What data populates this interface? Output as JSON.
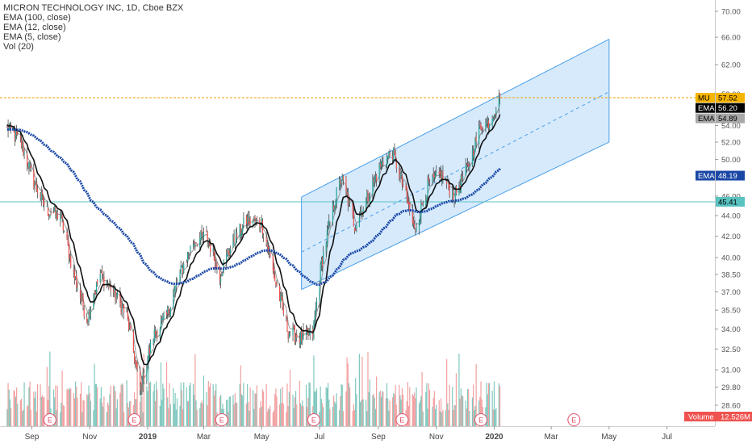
{
  "header": {
    "title": "MICRON TECHNOLOGY INC, 1D, Cboe BZX",
    "studies": [
      "EMA (100, close)",
      "EMA (12, close)",
      "EMA (5, close)",
      "Vol (20)"
    ]
  },
  "colors": {
    "up": "#26a69a",
    "down": "#ef5350",
    "up_vol": "#7fc8be",
    "down_vol": "#f2a0a0",
    "ema100": "#1a47a6",
    "ema12": "#111111",
    "ema5": "#999999",
    "channel_fill": "#cfe6fb",
    "channel_line": "#4a9ee8",
    "hline_price": "#f0a30a",
    "hline_support": "#59c3c0",
    "earnings": "#e0506a"
  },
  "price_tags": [
    {
      "label": "MU",
      "value": "57.52",
      "bg": "#f5b400",
      "fg": "#000000"
    },
    {
      "label": "EMA",
      "value": "56.20",
      "bg": "#000000",
      "fg": "#ffffff"
    },
    {
      "label": "EMA",
      "value": "54.89",
      "bg": "#a8a8a8",
      "fg": "#000000"
    },
    {
      "label": "EMA",
      "value": "48.19",
      "bg": "#1a47a6",
      "fg": "#ffffff"
    },
    {
      "label": "",
      "value": "45.41",
      "bg": "#59c3c0",
      "fg": "#000000"
    }
  ],
  "volume_tag": {
    "label": "Volume",
    "value": "12.526M"
  },
  "earnings_marker": "E",
  "chart_data": {
    "type": "candlestick",
    "title": "MICRON TECHNOLOGY INC, 1D, Cboe BZX",
    "y_scale": "log",
    "y_ticks": [
      "70.00",
      "66.00",
      "62.00",
      "58.00",
      "54.00",
      "52.00",
      "50.00",
      "48.00",
      "46.00",
      "44.00",
      "42.00",
      "40.00",
      "38.50",
      "37.00",
      "35.50",
      "34.00",
      "32.50",
      "31.00",
      "29.80",
      "28.60"
    ],
    "x_ticks": [
      {
        "label": "Sep",
        "bold": false
      },
      {
        "label": "Nov",
        "bold": false
      },
      {
        "label": "2019",
        "bold": true
      },
      {
        "label": "Mar",
        "bold": false
      },
      {
        "label": "May",
        "bold": false
      },
      {
        "label": "Jul",
        "bold": false
      },
      {
        "label": "Sep",
        "bold": false
      },
      {
        "label": "Nov",
        "bold": false
      },
      {
        "label": "2020",
        "bold": true
      },
      {
        "label": "Mar",
        "bold": false
      },
      {
        "label": "May",
        "bold": false
      },
      {
        "label": "Jul",
        "bold": false
      }
    ],
    "price_anchors": [
      {
        "date": "2018-08-06",
        "close": 53.8
      },
      {
        "date": "2018-08-20",
        "close": 52.0
      },
      {
        "date": "2018-09-03",
        "close": 47.5
      },
      {
        "date": "2018-09-17",
        "close": 44.5
      },
      {
        "date": "2018-10-01",
        "close": 44.0
      },
      {
        "date": "2018-10-15",
        "close": 38.5
      },
      {
        "date": "2018-10-29",
        "close": 34.8
      },
      {
        "date": "2018-11-12",
        "close": 38.5
      },
      {
        "date": "2018-11-26",
        "close": 37.0
      },
      {
        "date": "2018-12-10",
        "close": 35.0
      },
      {
        "date": "2018-12-24",
        "close": 29.5
      },
      {
        "date": "2019-01-07",
        "close": 33.5
      },
      {
        "date": "2019-01-21",
        "close": 35.0
      },
      {
        "date": "2019-02-04",
        "close": 38.5
      },
      {
        "date": "2019-02-18",
        "close": 41.5
      },
      {
        "date": "2019-03-04",
        "close": 42.0
      },
      {
        "date": "2019-03-18",
        "close": 38.5
      },
      {
        "date": "2019-04-01",
        "close": 41.5
      },
      {
        "date": "2019-04-15",
        "close": 43.5
      },
      {
        "date": "2019-05-01",
        "close": 43.3
      },
      {
        "date": "2019-05-15",
        "close": 38.0
      },
      {
        "date": "2019-05-29",
        "close": 33.8
      },
      {
        "date": "2019-06-12",
        "close": 33.3
      },
      {
        "date": "2019-06-24",
        "close": 33.6
      },
      {
        "date": "2019-07-03",
        "close": 39.5
      },
      {
        "date": "2019-07-17",
        "close": 45.5
      },
      {
        "date": "2019-07-24",
        "close": 48.0
      },
      {
        "date": "2019-08-07",
        "close": 43.0
      },
      {
        "date": "2019-08-21",
        "close": 46.0
      },
      {
        "date": "2019-09-04",
        "close": 49.5
      },
      {
        "date": "2019-09-16",
        "close": 50.8
      },
      {
        "date": "2019-09-30",
        "close": 46.0
      },
      {
        "date": "2019-10-09",
        "close": 42.5
      },
      {
        "date": "2019-10-23",
        "close": 47.0
      },
      {
        "date": "2019-11-06",
        "close": 48.3
      },
      {
        "date": "2019-11-20",
        "close": 46.0
      },
      {
        "date": "2019-12-04",
        "close": 49.0
      },
      {
        "date": "2019-12-18",
        "close": 54.0
      },
      {
        "date": "2019-12-27",
        "close": 54.5
      },
      {
        "date": "2020-01-07",
        "close": 57.52
      }
    ],
    "last_date": "2020-01-07",
    "ema_last": {
      "ema12": 56.2,
      "ema5": 54.89,
      "ema100": 48.19
    },
    "last_volume": "12.526M",
    "horizontal_lines": [
      57.52,
      45.41
    ],
    "regression_channel": {
      "start": {
        "date": "2019-06-12",
        "mid": 40.5,
        "upper": 45.9,
        "lower": 37.2
      },
      "end": {
        "date": "2020-05-01",
        "mid": 58.3,
        "upper": 65.7,
        "lower": 52.0
      }
    },
    "earnings_dates": [
      "2018-09-20",
      "2018-12-18",
      "2019-03-20",
      "2019-06-25",
      "2019-09-26",
      "2019-12-18",
      "2020-03-25"
    ]
  }
}
